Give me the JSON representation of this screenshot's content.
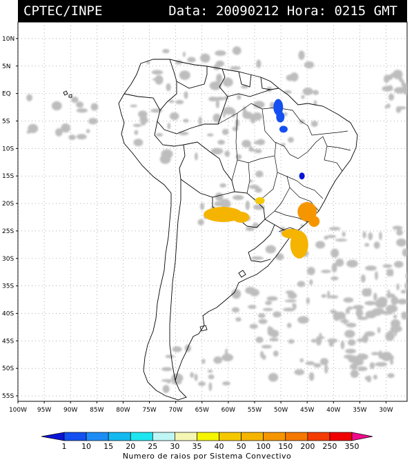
{
  "header": {
    "org": "CPTEC/INPE",
    "stamp": "Data: 20090212 Hora: 0215 GMT"
  },
  "map": {
    "lat_labels": [
      {
        "lat": 10,
        "label": "10N"
      },
      {
        "lat": 5,
        "label": "5N"
      },
      {
        "lat": 0,
        "label": "EQ"
      },
      {
        "lat": -5,
        "label": "5S"
      },
      {
        "lat": -10,
        "label": "10S"
      },
      {
        "lat": -15,
        "label": "15S"
      },
      {
        "lat": -20,
        "label": "20S"
      },
      {
        "lat": -25,
        "label": "25S"
      },
      {
        "lat": -30,
        "label": "30S"
      },
      {
        "lat": -35,
        "label": "35S"
      },
      {
        "lat": -40,
        "label": "40S"
      },
      {
        "lat": -45,
        "label": "45S"
      },
      {
        "lat": -50,
        "label": "50S"
      },
      {
        "lat": -55,
        "label": "55S"
      }
    ],
    "lon_labels": [
      {
        "lon": -100,
        "label": "100W"
      },
      {
        "lon": -95,
        "label": "95W"
      },
      {
        "lon": -90,
        "label": "90W"
      },
      {
        "lon": -85,
        "label": "85W"
      },
      {
        "lon": -80,
        "label": "80W"
      },
      {
        "lon": -75,
        "label": "75W"
      },
      {
        "lon": -70,
        "label": "70W"
      },
      {
        "lon": -65,
        "label": "65W"
      },
      {
        "lon": -60,
        "label": "60W"
      },
      {
        "lon": -55,
        "label": "55W"
      },
      {
        "lon": -50,
        "label": "50W"
      },
      {
        "lon": -45,
        "label": "45W"
      },
      {
        "lon": -40,
        "label": "40W"
      },
      {
        "lon": -35,
        "label": "35W"
      },
      {
        "lon": -30,
        "label": "30W"
      }
    ],
    "extent": {
      "lon_min": -100,
      "lon_max": -26,
      "lat_min": -56,
      "lat_max": 13
    },
    "grid": "dotted",
    "colors": {
      "land_line": "#000000",
      "cloud": "#bdbdbd",
      "grid": "#7a7a7a"
    }
  },
  "colorbar": {
    "title": "Numero de raios por Sistema Convectivo",
    "bins": [
      {
        "label": "1",
        "color": "#0a14d6"
      },
      {
        "label": "10",
        "color": "#1450f0"
      },
      {
        "label": "15",
        "color": "#1e8cf5"
      },
      {
        "label": "20",
        "color": "#14b9f0"
      },
      {
        "label": "25",
        "color": "#1ee6f0"
      },
      {
        "label": "30",
        "color": "#bef5f5"
      },
      {
        "label": "35",
        "color": "#f5f5b4"
      },
      {
        "label": "40",
        "color": "#f5f500"
      },
      {
        "label": "50",
        "color": "#f5c800"
      },
      {
        "label": "100",
        "color": "#f5b400"
      },
      {
        "label": "150",
        "color": "#f59600"
      },
      {
        "label": "200",
        "color": "#f57800"
      },
      {
        "label": "250",
        "color": "#f53c00"
      },
      {
        "label": "350",
        "color": "#f00000"
      }
    ],
    "end_color": "#f00a8c"
  },
  "systems": [
    {
      "name": "system-amazon-mouth",
      "color": "#1450f0",
      "lon": -50.5,
      "lat": -2.5
    },
    {
      "name": "system-maranhao",
      "color": "#1450f0",
      "lon": -49.5,
      "lat": -6.5
    },
    {
      "name": "system-goias",
      "color": "#0a14d6",
      "lon": -46.0,
      "lat": -15.0
    },
    {
      "name": "system-mato-grosso-sul",
      "color": "#f5c800",
      "lon": -54.0,
      "lat": -19.5
    },
    {
      "name": "system-minas",
      "color": "#f59600",
      "lon": -45.0,
      "lat": -21.5
    },
    {
      "name": "system-paraguay-chaco",
      "color": "#f5b400",
      "lon": -61.0,
      "lat": -22.0
    },
    {
      "name": "system-parana",
      "color": "#f5b400",
      "lon": -48.0,
      "lat": -25.5
    },
    {
      "name": "system-santa-catarina",
      "color": "#f5b400",
      "lon": -46.5,
      "lat": -27.5
    }
  ]
}
